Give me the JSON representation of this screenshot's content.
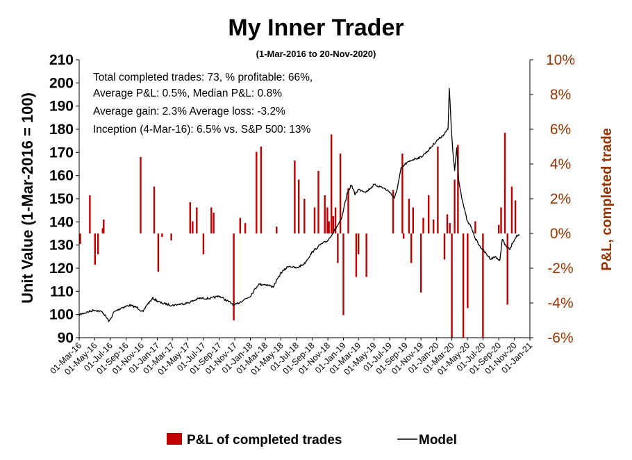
{
  "chart_data": {
    "type": "line+bar",
    "title": "My Inner Trader",
    "subtitle": "(1-Mar-2016 to 20-Nov-2020)",
    "ylabel": "Unit Value (1-Mar-2016 = 100)",
    "y2label": "P&L, completed trade",
    "ylim": [
      90,
      210
    ],
    "yticks": [
      "90",
      "100",
      "110",
      "120",
      "130",
      "140",
      "150",
      "160",
      "170",
      "180",
      "190",
      "200",
      "210"
    ],
    "y2lim": [
      -6,
      10
    ],
    "y2ticks": [
      "-6%",
      "-4%",
      "-2%",
      "0%",
      "2%",
      "4%",
      "6%",
      "8%",
      "10%"
    ],
    "xlim": [
      "2016-03-01",
      "2021-01-01"
    ],
    "xticks": [
      "01-Mar-16",
      "01-May-16",
      "01-Jul-16",
      "01-Sep-16",
      "01-Nov-16",
      "01-Jan-17",
      "01-Mar-17",
      "01-May-17",
      "01-Jul-17",
      "01-Sep-17",
      "01-Nov-17",
      "01-Jan-18",
      "01-Mar-18",
      "01-May-18",
      "01-Jul-18",
      "01-Sep-18",
      "01-Nov-18",
      "01-Jan-19",
      "01-Mar-19",
      "01-May-19",
      "01-Jul-19",
      "01-Sep-19",
      "01-Nov-19",
      "01-Jan-20",
      "01-Mar-20",
      "01-May-20",
      "01-Jul-20",
      "01-Sep-20",
      "01-Nov-20",
      "01-Jan-21"
    ],
    "annotations": [
      "Total completed trades: 73, % profitable: 66%,",
      "Average P&L: 0.5%, Median P&L: 0.8%",
      "Average gain: 2.3% Average loss: -3.2%",
      "Inception (4-Mar-16): 6.5% vs. S&P 500: 13%"
    ],
    "legend_position": "bottom",
    "grid": false,
    "colors": {
      "bars": "#c00000",
      "line": "#000000",
      "secondary_axis": "#993300"
    },
    "series": [
      {
        "name": "Model",
        "kind": "line",
        "axis": "left",
        "points": [
          [
            "2016-03-01",
            100
          ],
          [
            "2016-04-01",
            101
          ],
          [
            "2016-05-01",
            102
          ],
          [
            "2016-06-01",
            101
          ],
          [
            "2016-06-27",
            97
          ],
          [
            "2016-07-15",
            101
          ],
          [
            "2016-08-15",
            103
          ],
          [
            "2016-09-15",
            104
          ],
          [
            "2016-10-15",
            103
          ],
          [
            "2016-11-07",
            101
          ],
          [
            "2016-11-20",
            104
          ],
          [
            "2016-12-15",
            107
          ],
          [
            "2017-01-15",
            105
          ],
          [
            "2017-03-01",
            104
          ],
          [
            "2017-05-01",
            105
          ],
          [
            "2017-06-15",
            107
          ],
          [
            "2017-08-01",
            107
          ],
          [
            "2017-09-01",
            108
          ],
          [
            "2017-10-01",
            106
          ],
          [
            "2017-11-01",
            104
          ],
          [
            "2017-12-01",
            106
          ],
          [
            "2018-01-01",
            108
          ],
          [
            "2018-02-01",
            113
          ],
          [
            "2018-03-01",
            113
          ],
          [
            "2018-04-01",
            112
          ],
          [
            "2018-05-01",
            118
          ],
          [
            "2018-06-01",
            121
          ],
          [
            "2018-07-01",
            120
          ],
          [
            "2018-08-01",
            122
          ],
          [
            "2018-09-01",
            127
          ],
          [
            "2018-10-01",
            130
          ],
          [
            "2018-11-01",
            132
          ],
          [
            "2018-12-01",
            137
          ],
          [
            "2018-12-24",
            141
          ],
          [
            "2019-01-15",
            152
          ],
          [
            "2019-02-01",
            156
          ],
          [
            "2019-02-15",
            152
          ],
          [
            "2019-03-01",
            154
          ],
          [
            "2019-04-01",
            153
          ],
          [
            "2019-05-01",
            156
          ],
          [
            "2019-06-01",
            155
          ],
          [
            "2019-07-01",
            153
          ],
          [
            "2019-07-20",
            150
          ],
          [
            "2019-08-01",
            155
          ],
          [
            "2019-08-15",
            163
          ],
          [
            "2019-09-01",
            165
          ],
          [
            "2019-10-01",
            167
          ],
          [
            "2019-11-01",
            168
          ],
          [
            "2019-12-01",
            171
          ],
          [
            "2020-01-01",
            175
          ],
          [
            "2020-02-01",
            178
          ],
          [
            "2020-02-15",
            180
          ],
          [
            "2020-02-20",
            198
          ],
          [
            "2020-02-28",
            180
          ],
          [
            "2020-03-05",
            170
          ],
          [
            "2020-03-12",
            162
          ],
          [
            "2020-03-20",
            172
          ],
          [
            "2020-03-28",
            158
          ],
          [
            "2020-04-10",
            150
          ],
          [
            "2020-04-20",
            145
          ],
          [
            "2020-05-01",
            140
          ],
          [
            "2020-05-15",
            138
          ],
          [
            "2020-06-01",
            133
          ],
          [
            "2020-06-15",
            130
          ],
          [
            "2020-07-01",
            128
          ],
          [
            "2020-07-15",
            126
          ],
          [
            "2020-08-01",
            124
          ],
          [
            "2020-08-20",
            125
          ],
          [
            "2020-09-05",
            123
          ],
          [
            "2020-09-15",
            133
          ],
          [
            "2020-09-25",
            130
          ],
          [
            "2020-10-15",
            128
          ],
          [
            "2020-10-25",
            131
          ],
          [
            "2020-11-10",
            134
          ],
          [
            "2020-11-20",
            134
          ]
        ]
      },
      {
        "name": "P&L of completed trades",
        "kind": "bar",
        "axis": "right",
        "unit": "%",
        "points": [
          [
            "2016-03-05",
            -0.6
          ],
          [
            "2016-04-12",
            2.2
          ],
          [
            "2016-05-02",
            -1.8
          ],
          [
            "2016-05-14",
            -1.2
          ],
          [
            "2016-06-01",
            0.3
          ],
          [
            "2016-06-05",
            0.8
          ],
          [
            "2016-10-28",
            4.4
          ],
          [
            "2016-12-20",
            2.7
          ],
          [
            "2017-01-05",
            -2.2
          ],
          [
            "2017-01-20",
            -0.2
          ],
          [
            "2017-02-25",
            -0.4
          ],
          [
            "2017-05-10",
            1.8
          ],
          [
            "2017-05-20",
            0.7
          ],
          [
            "2017-06-05",
            1.5
          ],
          [
            "2017-07-01",
            -1.2
          ],
          [
            "2017-08-01",
            1.5
          ],
          [
            "2017-08-10",
            1.2
          ],
          [
            "2017-10-28",
            -5.0
          ],
          [
            "2017-11-22",
            0.9
          ],
          [
            "2017-12-12",
            0.6
          ],
          [
            "2018-01-25",
            4.7
          ],
          [
            "2018-02-12",
            5.0
          ],
          [
            "2018-04-14",
            0.4
          ],
          [
            "2018-06-24",
            4.2
          ],
          [
            "2018-07-10",
            3.1
          ],
          [
            "2018-08-01",
            2.0
          ],
          [
            "2018-09-10",
            1.5
          ],
          [
            "2018-09-25",
            3.6
          ],
          [
            "2018-10-20",
            2.2
          ],
          [
            "2018-10-30",
            1.5
          ],
          [
            "2018-11-05",
            0.7
          ],
          [
            "2018-11-15",
            5.7
          ],
          [
            "2018-11-22",
            1.0
          ],
          [
            "2018-12-01",
            1.5
          ],
          [
            "2018-12-10",
            -1.7
          ],
          [
            "2018-12-20",
            4.6
          ],
          [
            "2019-01-01",
            -4.7
          ],
          [
            "2019-01-20",
            2.6
          ],
          [
            "2019-02-20",
            -2.5
          ],
          [
            "2019-03-01",
            -1.2
          ],
          [
            "2019-04-01",
            -2.5
          ],
          [
            "2019-07-15",
            2.5
          ],
          [
            "2019-08-20",
            4.6
          ],
          [
            "2019-08-25",
            -0.3
          ],
          [
            "2019-09-15",
            2.0
          ],
          [
            "2019-09-24",
            -1.7
          ],
          [
            "2019-10-01",
            1.5
          ],
          [
            "2019-11-01",
            -3.4
          ],
          [
            "2019-11-10",
            0.9
          ],
          [
            "2019-12-01",
            2.2
          ],
          [
            "2019-12-20",
            0.8
          ],
          [
            "2020-01-06",
            5.0
          ],
          [
            "2020-02-01",
            -1.5
          ],
          [
            "2020-02-12",
            1.1
          ],
          [
            "2020-02-22",
            0.6
          ],
          [
            "2020-03-01",
            -6.0
          ],
          [
            "2020-03-12",
            3.1
          ],
          [
            "2020-03-25",
            5.1
          ],
          [
            "2020-04-15",
            -6.0
          ],
          [
            "2020-05-02",
            -4.3
          ],
          [
            "2020-06-01",
            0.7
          ],
          [
            "2020-07-01",
            -6.0
          ],
          [
            "2020-09-01",
            0.5
          ],
          [
            "2020-09-10",
            1.5
          ],
          [
            "2020-09-25",
            5.8
          ],
          [
            "2020-10-05",
            -4.1
          ],
          [
            "2020-10-22",
            2.7
          ],
          [
            "2020-11-05",
            1.9
          ]
        ]
      }
    ]
  }
}
